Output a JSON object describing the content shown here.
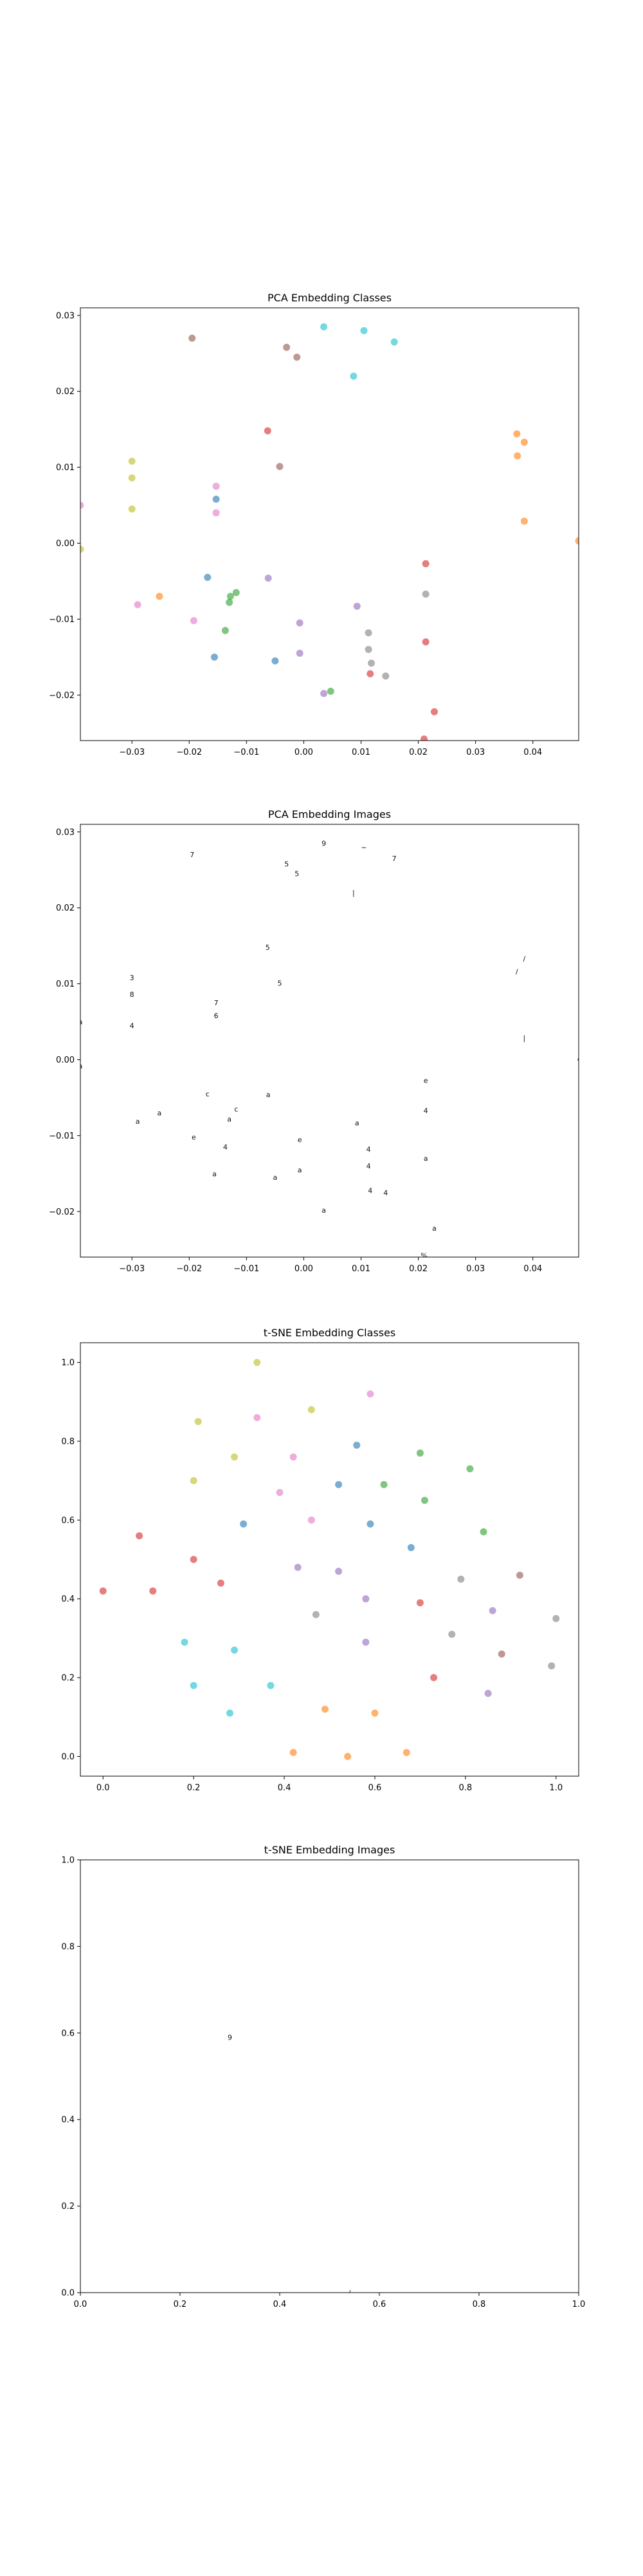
{
  "colors": {
    "palette": [
      "#1f77b4",
      "#ff7f0e",
      "#2ca02c",
      "#d62728",
      "#9467bd",
      "#8c564b",
      "#e377c2",
      "#7f7f7f",
      "#bcbd22",
      "#17becf"
    ],
    "background": "#ffffff",
    "axis": "#000000"
  },
  "chart_data": [
    {
      "type": "scatter",
      "title": "PCA Embedding Classes",
      "xlabel": "",
      "ylabel": "",
      "xlim": [
        -0.039,
        0.048
      ],
      "ylim": [
        -0.026,
        0.031
      ],
      "xticks": [
        -0.03,
        -0.02,
        -0.01,
        0.0,
        0.01,
        0.02,
        0.03,
        0.04
      ],
      "xtick_labels": [
        "−0.03",
        "−0.02",
        "−0.01",
        "0.00",
        "0.01",
        "0.02",
        "0.03",
        "0.04"
      ],
      "yticks": [
        -0.02,
        -0.01,
        0.0,
        0.01,
        0.02,
        0.03
      ],
      "ytick_labels": [
        "−0.02",
        "−0.01",
        "0.00",
        "0.01",
        "0.02",
        "0.03"
      ],
      "grid": false,
      "marker_alpha": 0.6,
      "points": [
        {
          "x": -0.0195,
          "y": 0.027,
          "c": 5
        },
        {
          "x": -0.003,
          "y": 0.0258,
          "c": 5
        },
        {
          "x": -0.0012,
          "y": 0.0245,
          "c": 5
        },
        {
          "x": 0.0035,
          "y": 0.0285,
          "c": 9
        },
        {
          "x": 0.0105,
          "y": 0.028,
          "c": 9
        },
        {
          "x": 0.0158,
          "y": 0.0265,
          "c": 9
        },
        {
          "x": 0.0087,
          "y": 0.022,
          "c": 9
        },
        {
          "x": -0.0063,
          "y": 0.0148,
          "c": 3
        },
        {
          "x": -0.0042,
          "y": 0.0101,
          "c": 5
        },
        {
          "x": -0.03,
          "y": 0.0108,
          "c": 8
        },
        {
          "x": -0.03,
          "y": 0.0086,
          "c": 8
        },
        {
          "x": -0.03,
          "y": 0.0045,
          "c": 8
        },
        {
          "x": -0.039,
          "y": 0.005,
          "c": 6
        },
        {
          "x": -0.0153,
          "y": 0.0075,
          "c": 6
        },
        {
          "x": -0.0153,
          "y": 0.0058,
          "c": 0
        },
        {
          "x": -0.0153,
          "y": 0.004,
          "c": 6
        },
        {
          "x": 0.0372,
          "y": 0.0144,
          "c": 1
        },
        {
          "x": 0.0385,
          "y": 0.0133,
          "c": 1
        },
        {
          "x": 0.0373,
          "y": 0.0115,
          "c": 1
        },
        {
          "x": 0.0385,
          "y": 0.0029,
          "c": 1
        },
        {
          "x": 0.048,
          "y": 0.0003,
          "c": 1
        },
        {
          "x": -0.039,
          "y": -0.0008,
          "c": 8
        },
        {
          "x": -0.0168,
          "y": -0.0045,
          "c": 0
        },
        {
          "x": -0.0062,
          "y": -0.0046,
          "c": 4
        },
        {
          "x": -0.0118,
          "y": -0.0065,
          "c": 2
        },
        {
          "x": -0.0128,
          "y": -0.007,
          "c": 2
        },
        {
          "x": -0.013,
          "y": -0.0078,
          "c": 2
        },
        {
          "x": -0.0252,
          "y": -0.007,
          "c": 1
        },
        {
          "x": -0.029,
          "y": -0.0081,
          "c": 6
        },
        {
          "x": -0.0192,
          "y": -0.0102,
          "c": 6
        },
        {
          "x": -0.0137,
          "y": -0.0115,
          "c": 2
        },
        {
          "x": -0.0156,
          "y": -0.015,
          "c": 0
        },
        {
          "x": -0.005,
          "y": -0.0155,
          "c": 0
        },
        {
          "x": -0.0007,
          "y": -0.0105,
          "c": 4
        },
        {
          "x": -0.0007,
          "y": -0.0145,
          "c": 4
        },
        {
          "x": 0.0093,
          "y": -0.0083,
          "c": 4
        },
        {
          "x": 0.0113,
          "y": -0.0118,
          "c": 7
        },
        {
          "x": 0.0113,
          "y": -0.014,
          "c": 7
        },
        {
          "x": 0.0118,
          "y": -0.0158,
          "c": 7
        },
        {
          "x": 0.0116,
          "y": -0.0172,
          "c": 3
        },
        {
          "x": 0.0143,
          "y": -0.0175,
          "c": 7
        },
        {
          "x": 0.0035,
          "y": -0.0198,
          "c": 4
        },
        {
          "x": 0.0047,
          "y": -0.0195,
          "c": 2
        },
        {
          "x": 0.0213,
          "y": -0.0027,
          "c": 3
        },
        {
          "x": 0.0213,
          "y": -0.0067,
          "c": 7
        },
        {
          "x": 0.0213,
          "y": -0.013,
          "c": 3
        },
        {
          "x": 0.0228,
          "y": -0.0222,
          "c": 3
        },
        {
          "x": 0.021,
          "y": -0.0258,
          "c": 3
        }
      ]
    },
    {
      "type": "scatter",
      "title": "PCA Embedding Images",
      "xlabel": "",
      "ylabel": "",
      "xlim": [
        -0.039,
        0.048
      ],
      "ylim": [
        -0.026,
        0.031
      ],
      "xticks": [
        -0.03,
        -0.02,
        -0.01,
        0.0,
        0.01,
        0.02,
        0.03,
        0.04
      ],
      "xtick_labels": [
        "−0.03",
        "−0.02",
        "−0.01",
        "0.00",
        "0.01",
        "0.02",
        "0.03",
        "0.04"
      ],
      "yticks": [
        -0.02,
        -0.01,
        0.0,
        0.01,
        0.02,
        0.03
      ],
      "ytick_labels": [
        "−0.02",
        "−0.01",
        "0.00",
        "0.01",
        "0.02",
        "0.03"
      ],
      "grid": false,
      "marker": "small digit images",
      "points": [
        {
          "x": -0.0195,
          "y": 0.027,
          "g": "7"
        },
        {
          "x": -0.003,
          "y": 0.0258,
          "g": "5"
        },
        {
          "x": -0.0012,
          "y": 0.0245,
          "g": "5"
        },
        {
          "x": 0.0035,
          "y": 0.0285,
          "g": "9"
        },
        {
          "x": 0.0105,
          "y": 0.028,
          "g": "~"
        },
        {
          "x": 0.0158,
          "y": 0.0265,
          "g": "7"
        },
        {
          "x": 0.0087,
          "y": 0.022,
          "g": "|"
        },
        {
          "x": -0.0063,
          "y": 0.0148,
          "g": "5"
        },
        {
          "x": -0.0042,
          "y": 0.0101,
          "g": "5"
        },
        {
          "x": -0.03,
          "y": 0.0108,
          "g": "3"
        },
        {
          "x": -0.03,
          "y": 0.0086,
          "g": "8"
        },
        {
          "x": -0.03,
          "y": 0.0045,
          "g": "4"
        },
        {
          "x": -0.039,
          "y": 0.005,
          "g": "a"
        },
        {
          "x": -0.0153,
          "y": 0.0075,
          "g": "7"
        },
        {
          "x": -0.0153,
          "y": 0.0058,
          "g": "6"
        },
        {
          "x": 0.0372,
          "y": 0.0116,
          "g": "/"
        },
        {
          "x": 0.0385,
          "y": 0.0133,
          "g": "/"
        },
        {
          "x": 0.0385,
          "y": 0.0029,
          "g": "|"
        },
        {
          "x": 0.048,
          "y": 0.0003,
          "g": "/"
        },
        {
          "x": -0.039,
          "y": -0.0008,
          "g": "a"
        },
        {
          "x": -0.0168,
          "y": -0.0045,
          "g": "c"
        },
        {
          "x": -0.0062,
          "y": -0.0046,
          "g": "a"
        },
        {
          "x": -0.0118,
          "y": -0.0065,
          "g": "c"
        },
        {
          "x": -0.013,
          "y": -0.0078,
          "g": "a"
        },
        {
          "x": -0.0252,
          "y": -0.007,
          "g": "a"
        },
        {
          "x": -0.029,
          "y": -0.0081,
          "g": "a"
        },
        {
          "x": -0.0192,
          "y": -0.0102,
          "g": "e"
        },
        {
          "x": -0.0137,
          "y": -0.0115,
          "g": "4"
        },
        {
          "x": -0.0156,
          "y": -0.015,
          "g": "a"
        },
        {
          "x": -0.005,
          "y": -0.0155,
          "g": "a"
        },
        {
          "x": -0.0007,
          "y": -0.0105,
          "g": "e"
        },
        {
          "x": -0.0007,
          "y": -0.0145,
          "g": "a"
        },
        {
          "x": 0.0093,
          "y": -0.0083,
          "g": "a"
        },
        {
          "x": 0.0113,
          "y": -0.0118,
          "g": "4"
        },
        {
          "x": 0.0113,
          "y": -0.014,
          "g": "4"
        },
        {
          "x": 0.0116,
          "y": -0.0172,
          "g": "4"
        },
        {
          "x": 0.0143,
          "y": -0.0175,
          "g": "4"
        },
        {
          "x": 0.0035,
          "y": -0.0198,
          "g": "a"
        },
        {
          "x": 0.0213,
          "y": -0.0027,
          "g": "e"
        },
        {
          "x": 0.0213,
          "y": -0.0067,
          "g": "4"
        },
        {
          "x": 0.0213,
          "y": -0.013,
          "g": "a"
        },
        {
          "x": 0.0228,
          "y": -0.0222,
          "g": "a"
        },
        {
          "x": 0.021,
          "y": -0.0258,
          "g": "%"
        }
      ]
    },
    {
      "type": "scatter",
      "title": "t-SNE Embedding Classes",
      "xlabel": "",
      "ylabel": "",
      "xlim": [
        -0.05,
        1.05
      ],
      "ylim": [
        -0.05,
        1.05
      ],
      "xticks": [
        0.0,
        0.2,
        0.4,
        0.6,
        0.8,
        1.0
      ],
      "xtick_labels": [
        "0.0",
        "0.2",
        "0.4",
        "0.6",
        "0.8",
        "1.0"
      ],
      "yticks": [
        0.0,
        0.2,
        0.4,
        0.6,
        0.8,
        1.0
      ],
      "ytick_labels": [
        "0.0",
        "0.2",
        "0.4",
        "0.6",
        "0.8",
        "1.0"
      ],
      "grid": false,
      "marker_alpha": 0.6,
      "points": [
        {
          "x": 0.34,
          "y": 1.0,
          "c": 8
        },
        {
          "x": 0.59,
          "y": 0.92,
          "c": 6
        },
        {
          "x": 0.21,
          "y": 0.85,
          "c": 8
        },
        {
          "x": 0.34,
          "y": 0.86,
          "c": 6
        },
        {
          "x": 0.46,
          "y": 0.88,
          "c": 8
        },
        {
          "x": 0.56,
          "y": 0.79,
          "c": 0
        },
        {
          "x": 0.29,
          "y": 0.76,
          "c": 8
        },
        {
          "x": 0.42,
          "y": 0.76,
          "c": 6
        },
        {
          "x": 0.7,
          "y": 0.77,
          "c": 2
        },
        {
          "x": 0.81,
          "y": 0.73,
          "c": 2
        },
        {
          "x": 0.2,
          "y": 0.7,
          "c": 8
        },
        {
          "x": 0.52,
          "y": 0.69,
          "c": 0
        },
        {
          "x": 0.62,
          "y": 0.69,
          "c": 2
        },
        {
          "x": 0.39,
          "y": 0.67,
          "c": 6
        },
        {
          "x": 0.71,
          "y": 0.65,
          "c": 2
        },
        {
          "x": 0.31,
          "y": 0.59,
          "c": 0
        },
        {
          "x": 0.46,
          "y": 0.6,
          "c": 6
        },
        {
          "x": 0.59,
          "y": 0.59,
          "c": 0
        },
        {
          "x": 0.84,
          "y": 0.57,
          "c": 2
        },
        {
          "x": 0.08,
          "y": 0.56,
          "c": 3
        },
        {
          "x": 0.68,
          "y": 0.53,
          "c": 0
        },
        {
          "x": 0.2,
          "y": 0.5,
          "c": 3
        },
        {
          "x": 0.43,
          "y": 0.48,
          "c": 4
        },
        {
          "x": 0.52,
          "y": 0.47,
          "c": 4
        },
        {
          "x": 0.79,
          "y": 0.45,
          "c": 7
        },
        {
          "x": 0.92,
          "y": 0.46,
          "c": 5
        },
        {
          "x": 0.26,
          "y": 0.44,
          "c": 3
        },
        {
          "x": 0.0,
          "y": 0.42,
          "c": 3
        },
        {
          "x": 0.11,
          "y": 0.42,
          "c": 3
        },
        {
          "x": 0.58,
          "y": 0.4,
          "c": 4
        },
        {
          "x": 0.7,
          "y": 0.39,
          "c": 3
        },
        {
          "x": 0.86,
          "y": 0.37,
          "c": 4
        },
        {
          "x": 0.47,
          "y": 0.36,
          "c": 7
        },
        {
          "x": 1.0,
          "y": 0.35,
          "c": 7
        },
        {
          "x": 0.77,
          "y": 0.31,
          "c": 7
        },
        {
          "x": 0.18,
          "y": 0.29,
          "c": 9
        },
        {
          "x": 0.58,
          "y": 0.29,
          "c": 4
        },
        {
          "x": 0.29,
          "y": 0.27,
          "c": 9
        },
        {
          "x": 0.88,
          "y": 0.26,
          "c": 5
        },
        {
          "x": 0.99,
          "y": 0.23,
          "c": 7
        },
        {
          "x": 0.73,
          "y": 0.2,
          "c": 3
        },
        {
          "x": 0.2,
          "y": 0.18,
          "c": 9
        },
        {
          "x": 0.37,
          "y": 0.18,
          "c": 9
        },
        {
          "x": 0.85,
          "y": 0.16,
          "c": 4
        },
        {
          "x": 0.28,
          "y": 0.11,
          "c": 9
        },
        {
          "x": 0.49,
          "y": 0.12,
          "c": 1
        },
        {
          "x": 0.42,
          "y": 0.01,
          "c": 1
        },
        {
          "x": 0.54,
          "y": 0.0,
          "c": 1
        },
        {
          "x": 0.6,
          "y": 0.11,
          "c": 1
        },
        {
          "x": 0.67,
          "y": 0.01,
          "c": 1
        }
      ]
    },
    {
      "type": "scatter",
      "title": "t-SNE Embedding Images",
      "xlabel": "",
      "ylabel": "",
      "xlim": [
        0.0,
        1.0
      ],
      "ylim": [
        0.0,
        1.0
      ],
      "xticks": [
        0.0,
        0.2,
        0.4,
        0.6,
        0.8,
        1.0
      ],
      "xtick_labels": [
        "0.0",
        "0.2",
        "0.4",
        "0.6",
        "0.8",
        "1.0"
      ],
      "yticks": [
        0.0,
        0.2,
        0.4,
        0.6,
        0.8,
        1.0
      ],
      "ytick_labels": [
        "0.0",
        "0.2",
        "0.4",
        "0.6",
        "0.8",
        "1.0"
      ],
      "grid": false,
      "marker": "small digit images",
      "points": [
        {
          "x": 0.3,
          "y": 0.59,
          "g": "9"
        },
        {
          "x": 0.54,
          "y": 0.0,
          "g": "/"
        }
      ]
    }
  ]
}
